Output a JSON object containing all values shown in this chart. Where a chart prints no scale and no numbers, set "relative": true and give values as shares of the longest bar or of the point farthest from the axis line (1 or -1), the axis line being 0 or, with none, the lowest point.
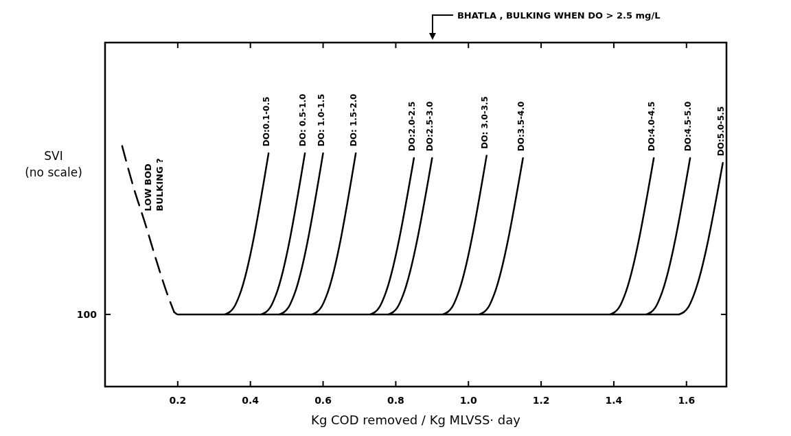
{
  "chart_data": {
    "type": "line",
    "relative": true,
    "xlabel": "Kg COD removed / Kg MLVSS· day",
    "ylabel": "SVI\n(no scale)",
    "xlim": [
      0,
      1.71
    ],
    "xticks": [
      0.2,
      0.4,
      0.6,
      0.8,
      {
        "value": 1.0,
        "label": "1.0"
      },
      1.2,
      1.4,
      1.6
    ],
    "annotations": [
      "LOW BOD\nBULKING ?",
      "100",
      "BHATLA , BULKING WHEN DO > 2.5 mg/L"
    ],
    "series": [
      {
        "color": "#000000",
        "line_style": "dashed",
        "x": [
          0.047,
          0.08,
          0.11,
          0.14,
          0.17,
          0.19
        ],
        "values": [
          1.0,
          0.82,
          0.68,
          0.53,
          0.39,
          0.31
        ]
      },
      {
        "color": "#000000",
        "x": [
          0.19,
          0.2,
          1.58
        ],
        "values": [
          0.31,
          0.3,
          0.3
        ]
      },
      {
        "name": "DO:0.1-0.5",
        "color": "#000000",
        "x": [
          0.33,
          0.355,
          0.37,
          0.45
        ],
        "values": [
          0.3,
          0.33,
          0.38,
          0.97
        ]
      },
      {
        "name": "DO: 0.5-1.0",
        "color": "#000000",
        "x": [
          0.43,
          0.455,
          0.47,
          0.55
        ],
        "values": [
          0.3,
          0.33,
          0.38,
          0.97
        ]
      },
      {
        "name": "DO: 1.0-1.5",
        "color": "#000000",
        "x": [
          0.48,
          0.505,
          0.52,
          0.6
        ],
        "values": [
          0.3,
          0.33,
          0.38,
          0.97
        ]
      },
      {
        "name": "DO: 1.5-2.0",
        "color": "#000000",
        "x": [
          0.57,
          0.595,
          0.61,
          0.69
        ],
        "values": [
          0.3,
          0.33,
          0.38,
          0.97
        ]
      },
      {
        "name": "DO:2.0-2.5",
        "color": "#000000",
        "x": [
          0.73,
          0.755,
          0.77,
          0.85
        ],
        "values": [
          0.3,
          0.33,
          0.38,
          0.95
        ]
      },
      {
        "name": "DO:2.5-3.0",
        "color": "#000000",
        "x": [
          0.78,
          0.805,
          0.82,
          0.9
        ],
        "values": [
          0.3,
          0.33,
          0.38,
          0.95
        ]
      },
      {
        "name": "DO: 3.0-3.5",
        "color": "#000000",
        "x": [
          0.93,
          0.955,
          0.97,
          1.05
        ],
        "values": [
          0.3,
          0.33,
          0.38,
          0.96
        ]
      },
      {
        "name": "DO:3.5-4.0",
        "color": "#000000",
        "x": [
          1.03,
          1.055,
          1.07,
          1.15
        ],
        "values": [
          0.3,
          0.33,
          0.38,
          0.95
        ]
      },
      {
        "name": "DO:4.0-4.5",
        "color": "#000000",
        "x": [
          1.39,
          1.415,
          1.43,
          1.51
        ],
        "values": [
          0.3,
          0.33,
          0.38,
          0.95
        ]
      },
      {
        "name": "DO:4.5-5.0",
        "color": "#000000",
        "x": [
          1.49,
          1.515,
          1.53,
          1.61
        ],
        "values": [
          0.3,
          0.33,
          0.38,
          0.95
        ]
      },
      {
        "name": "DO:5.0-5.5",
        "color": "#000000",
        "x": [
          1.58,
          1.605,
          1.62,
          1.7
        ],
        "values": [
          0.3,
          0.33,
          0.38,
          0.93
        ]
      }
    ]
  }
}
